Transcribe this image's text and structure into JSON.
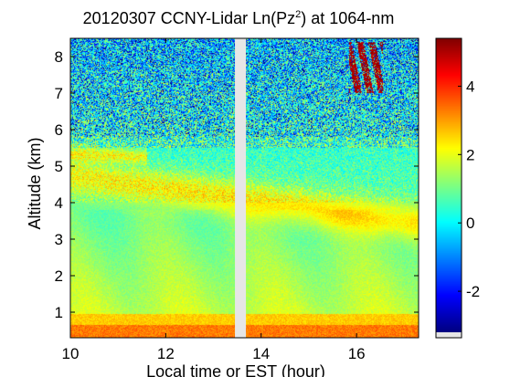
{
  "chart_data": {
    "type": "heatmap",
    "title": {
      "prefix": "20120307 CCNY-Lidar Ln(Pz",
      "sup": "2",
      "suffix": ") at 1064-nm"
    },
    "xlabel": "Local time or EST  (hour)",
    "ylabel": "Altitude (km)",
    "xlim": [
      10,
      17.3
    ],
    "ylim": [
      0.3,
      8.5
    ],
    "x_ticks": [
      10,
      12,
      14,
      16
    ],
    "y_ticks": [
      1,
      2,
      3,
      4,
      5,
      6,
      7,
      8
    ],
    "colorbar": {
      "range": [
        -3.2,
        5.4
      ],
      "ticks": [
        -2,
        0,
        2,
        4
      ]
    },
    "data_gap_hours": [
      13.45,
      13.68
    ],
    "features": [
      {
        "label": "surface layer",
        "altitude_km": [
          0.3,
          0.8
        ],
        "value": 3.0
      },
      {
        "label": "aerosol layer",
        "altitude_km": [
          4.2,
          5.6
        ],
        "value": 2.4
      },
      {
        "label": "cloud",
        "time_hour": [
          15.85,
          16.55
        ],
        "altitude_km": [
          7.0,
          8.4
        ],
        "value": 5.0
      }
    ],
    "grid": false
  }
}
